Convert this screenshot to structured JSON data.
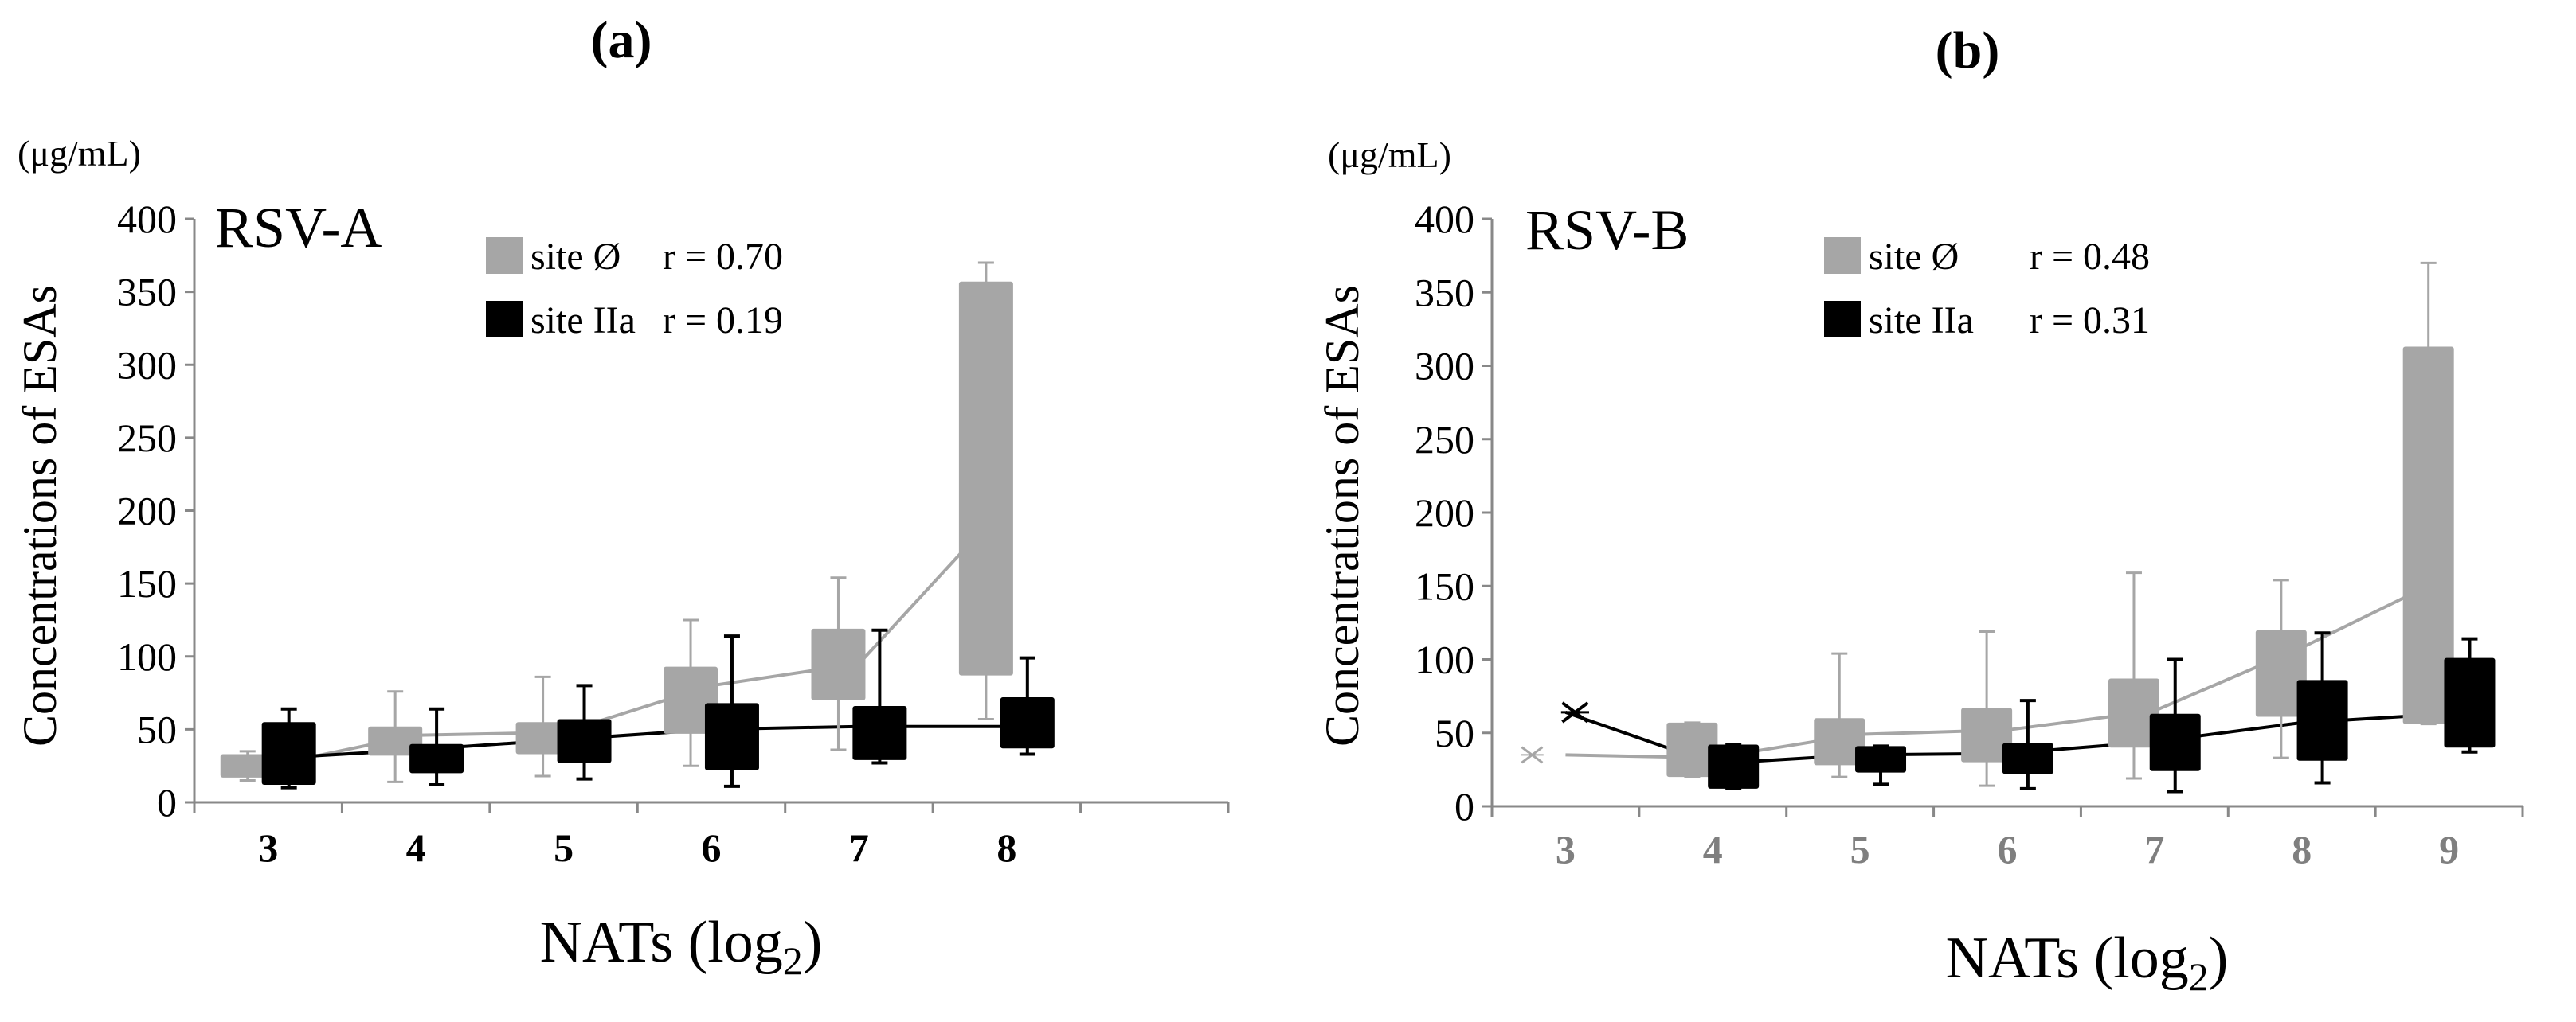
{
  "chart_data": [
    {
      "type": "box",
      "panel_label": "(a)",
      "unit_label": "(μg/mL)",
      "title": "RSV-A",
      "ylabel": "Concentrations  of  ESAs",
      "xlabel_main": "NATs (log",
      "xlabel_sub": "2",
      "xlabel_close": ")",
      "ylim": [
        0,
        400
      ],
      "yticks": [
        0,
        50,
        100,
        150,
        200,
        250,
        300,
        350,
        400
      ],
      "xlim": [
        2.5,
        9.5
      ],
      "xticks": [
        3,
        4,
        5,
        6,
        7,
        8
      ],
      "grid": false,
      "legend_position": "top-center",
      "legend": [
        {
          "name": "site Ø",
          "r_label": "r = 0.70",
          "color": "#a6a6a6"
        },
        {
          "name": "site IIa",
          "r_label": "r = 0.19",
          "color": "#000000"
        }
      ],
      "series": [
        {
          "name": "site Ø",
          "color": "#a6a6a6",
          "offset": -0.14,
          "boxes": [
            {
              "x": 3,
              "q1": 17,
              "q3": 33,
              "min": 15,
              "max": 35
            },
            {
              "x": 4,
              "q1": 32,
              "q3": 52,
              "min": 14,
              "max": 76
            },
            {
              "x": 5,
              "q1": 33,
              "q3": 55,
              "min": 18,
              "max": 86
            },
            {
              "x": 6,
              "q1": 47,
              "q3": 93,
              "min": 25,
              "max": 125
            },
            {
              "x": 7,
              "q1": 70,
              "q3": 119,
              "min": 36,
              "max": 154
            },
            {
              "x": 8,
              "q1": 87,
              "q3": 357,
              "min": 57,
              "max": 370
            }
          ],
          "line": [
            {
              "x": 3,
              "y": 25
            },
            {
              "x": 4,
              "y": 46
            },
            {
              "x": 5,
              "y": 48
            },
            {
              "x": 6,
              "y": 80
            },
            {
              "x": 7,
              "y": 95
            },
            {
              "x": 8,
              "y": 205
            }
          ]
        },
        {
          "name": "site IIa",
          "color": "#000000",
          "offset": 0.14,
          "boxes": [
            {
              "x": 3,
              "q1": 12,
              "q3": 55,
              "min": 10,
              "max": 64
            },
            {
              "x": 4,
              "q1": 20,
              "q3": 40,
              "min": 12,
              "max": 64
            },
            {
              "x": 5,
              "q1": 27,
              "q3": 57,
              "min": 16,
              "max": 80
            },
            {
              "x": 6,
              "q1": 22,
              "q3": 68,
              "min": 11,
              "max": 114
            },
            {
              "x": 7,
              "q1": 29,
              "q3": 66,
              "min": 27,
              "max": 118
            },
            {
              "x": 8,
              "q1": 37,
              "q3": 72,
              "min": 33,
              "max": 99
            }
          ],
          "line": [
            {
              "x": 3,
              "y": 30
            },
            {
              "x": 4,
              "y": 36
            },
            {
              "x": 5,
              "y": 43
            },
            {
              "x": 6,
              "y": 50
            },
            {
              "x": 7,
              "y": 52
            },
            {
              "x": 8,
              "y": 52
            }
          ]
        }
      ]
    },
    {
      "type": "box",
      "panel_label": "(b)",
      "unit_label": "(μg/mL)",
      "title": "RSV-B",
      "ylabel": "Concentrations  of  ESAs",
      "xlabel_main": "NATs (log",
      "xlabel_sub": "2",
      "xlabel_close": ")",
      "ylim": [
        0,
        400
      ],
      "yticks": [
        0,
        50,
        100,
        150,
        200,
        250,
        300,
        350,
        400
      ],
      "xlim": [
        2.5,
        9.5
      ],
      "xticks": [
        3,
        4,
        5,
        6,
        7,
        8,
        9
      ],
      "tick_label_color": "#7f7f7f",
      "grid": false,
      "legend_position": "top-center",
      "legend": [
        {
          "name": "site Ø",
          "r_label": "r = 0.48",
          "color": "#a6a6a6"
        },
        {
          "name": "site IIa",
          "r_label": "r = 0.31",
          "color": "#000000"
        }
      ],
      "series": [
        {
          "name": "site Ø",
          "color": "#a6a6a6",
          "offset": -0.14,
          "marker_only_at": [
            3
          ],
          "boxes": [
            {
              "x": 4,
              "q1": 20,
              "q3": 57,
              "min": 20,
              "max": 57
            },
            {
              "x": 5,
              "q1": 28,
              "q3": 60,
              "min": 20,
              "max": 104
            },
            {
              "x": 6,
              "q1": 30,
              "q3": 67,
              "min": 14,
              "max": 119
            },
            {
              "x": 7,
              "q1": 40,
              "q3": 87,
              "min": 19,
              "max": 159
            },
            {
              "x": 8,
              "q1": 61,
              "q3": 120,
              "min": 33,
              "max": 154
            },
            {
              "x": 9,
              "q1": 56,
              "q3": 313,
              "min": 56,
              "max": 370
            }
          ],
          "line": [
            {
              "x": 3,
              "y": 35
            },
            {
              "x": 4,
              "y": 33
            },
            {
              "x": 5,
              "y": 49
            },
            {
              "x": 6,
              "y": 52
            },
            {
              "x": 7,
              "y": 65
            },
            {
              "x": 8,
              "y": 108
            },
            {
              "x": 9,
              "y": 157
            }
          ]
        },
        {
          "name": "site IIa",
          "color": "#000000",
          "offset": 0.14,
          "marker_only_at": [
            3
          ],
          "boxes": [
            {
              "x": 4,
              "q1": 12,
              "q3": 42,
              "min": 12,
              "max": 42
            },
            {
              "x": 5,
              "q1": 23,
              "q3": 41,
              "min": 15,
              "max": 41
            },
            {
              "x": 6,
              "q1": 22,
              "q3": 43,
              "min": 12,
              "max": 72
            },
            {
              "x": 7,
              "q1": 24,
              "q3": 63,
              "min": 10,
              "max": 100
            },
            {
              "x": 8,
              "q1": 31,
              "q3": 86,
              "min": 16,
              "max": 118
            },
            {
              "x": 9,
              "q1": 40,
              "q3": 101,
              "min": 37,
              "max": 114
            }
          ],
          "line": [
            {
              "x": 3,
              "y": 64
            },
            {
              "x": 4,
              "y": 29
            },
            {
              "x": 5,
              "y": 35
            },
            {
              "x": 6,
              "y": 36
            },
            {
              "x": 7,
              "y": 44
            },
            {
              "x": 8,
              "y": 57
            },
            {
              "x": 9,
              "y": 63
            }
          ]
        }
      ]
    }
  ]
}
